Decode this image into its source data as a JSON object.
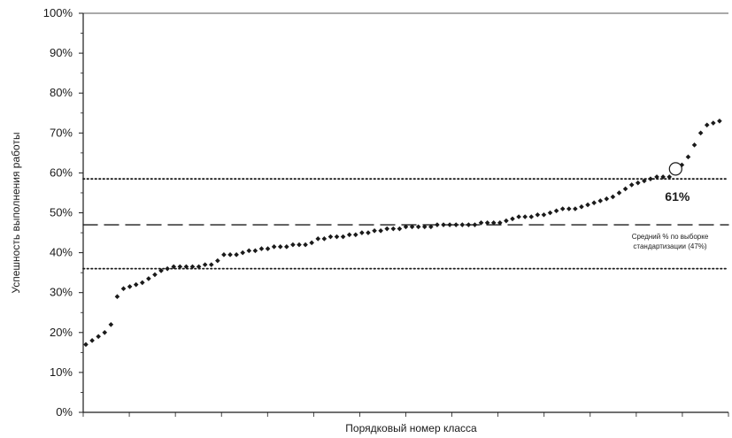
{
  "chart_data": {
    "type": "scatter",
    "title": "",
    "xlabel": "Порядковый номер класса",
    "ylabel": "Успешность выполнения работы",
    "ylim": [
      0,
      100
    ],
    "xlim": [
      0,
      102
    ],
    "yticks": [
      "0%",
      "10%",
      "20%",
      "30%",
      "40%",
      "50%",
      "60%",
      "70%",
      "80%",
      "90%",
      "100%"
    ],
    "grid": false,
    "reference_lines": [
      {
        "y": 58.5,
        "style": "dotted"
      },
      {
        "y": 47,
        "style": "dashed"
      },
      {
        "y": 36,
        "style": "dotted"
      }
    ],
    "highlight": {
      "x": 94,
      "y": 61,
      "label": "61%"
    },
    "annotation": {
      "line1": "Средний % по выборке",
      "line2": "стандартизации (47%)"
    },
    "series": [
      {
        "values": [
          {
            "x": 0,
            "y": 17
          },
          {
            "x": 1,
            "y": 18
          },
          {
            "x": 2,
            "y": 19
          },
          {
            "x": 3,
            "y": 20
          },
          {
            "x": 4,
            "y": 22
          },
          {
            "x": 5,
            "y": 29
          },
          {
            "x": 6,
            "y": 31
          },
          {
            "x": 7,
            "y": 31.5
          },
          {
            "x": 8,
            "y": 32
          },
          {
            "x": 9,
            "y": 32.5
          },
          {
            "x": 10,
            "y": 33.5
          },
          {
            "x": 11,
            "y": 34.5
          },
          {
            "x": 12,
            "y": 35.5
          },
          {
            "x": 13,
            "y": 36
          },
          {
            "x": 14,
            "y": 36.5
          },
          {
            "x": 15,
            "y": 36.5
          },
          {
            "x": 16,
            "y": 36.5
          },
          {
            "x": 17,
            "y": 36.5
          },
          {
            "x": 18,
            "y": 36.5
          },
          {
            "x": 19,
            "y": 37
          },
          {
            "x": 20,
            "y": 37
          },
          {
            "x": 21,
            "y": 38
          },
          {
            "x": 22,
            "y": 39.5
          },
          {
            "x": 23,
            "y": 39.5
          },
          {
            "x": 24,
            "y": 39.5
          },
          {
            "x": 25,
            "y": 40
          },
          {
            "x": 26,
            "y": 40.5
          },
          {
            "x": 27,
            "y": 40.5
          },
          {
            "x": 28,
            "y": 41
          },
          {
            "x": 29,
            "y": 41
          },
          {
            "x": 30,
            "y": 41.5
          },
          {
            "x": 31,
            "y": 41.5
          },
          {
            "x": 32,
            "y": 41.5
          },
          {
            "x": 33,
            "y": 42
          },
          {
            "x": 34,
            "y": 42
          },
          {
            "x": 35,
            "y": 42
          },
          {
            "x": 36,
            "y": 42.5
          },
          {
            "x": 37,
            "y": 43.5
          },
          {
            "x": 38,
            "y": 43.5
          },
          {
            "x": 39,
            "y": 44
          },
          {
            "x": 40,
            "y": 44
          },
          {
            "x": 41,
            "y": 44
          },
          {
            "x": 42,
            "y": 44.5
          },
          {
            "x": 43,
            "y": 44.5
          },
          {
            "x": 44,
            "y": 45
          },
          {
            "x": 45,
            "y": 45
          },
          {
            "x": 46,
            "y": 45.5
          },
          {
            "x": 47,
            "y": 45.5
          },
          {
            "x": 48,
            "y": 46
          },
          {
            "x": 49,
            "y": 46
          },
          {
            "x": 50,
            "y": 46
          },
          {
            "x": 51,
            "y": 46.5
          },
          {
            "x": 52,
            "y": 46.5
          },
          {
            "x": 53,
            "y": 46.5
          },
          {
            "x": 54,
            "y": 46.5
          },
          {
            "x": 55,
            "y": 46.5
          },
          {
            "x": 56,
            "y": 47
          },
          {
            "x": 57,
            "y": 47
          },
          {
            "x": 58,
            "y": 47
          },
          {
            "x": 59,
            "y": 47
          },
          {
            "x": 60,
            "y": 47
          },
          {
            "x": 61,
            "y": 47
          },
          {
            "x": 62,
            "y": 47
          },
          {
            "x": 63,
            "y": 47.5
          },
          {
            "x": 64,
            "y": 47.5
          },
          {
            "x": 65,
            "y": 47.5
          },
          {
            "x": 66,
            "y": 47.5
          },
          {
            "x": 67,
            "y": 48
          },
          {
            "x": 68,
            "y": 48.5
          },
          {
            "x": 69,
            "y": 49
          },
          {
            "x": 70,
            "y": 49
          },
          {
            "x": 71,
            "y": 49
          },
          {
            "x": 72,
            "y": 49.5
          },
          {
            "x": 73,
            "y": 49.5
          },
          {
            "x": 74,
            "y": 50
          },
          {
            "x": 75,
            "y": 50.5
          },
          {
            "x": 76,
            "y": 51
          },
          {
            "x": 77,
            "y": 51
          },
          {
            "x": 78,
            "y": 51
          },
          {
            "x": 79,
            "y": 51.5
          },
          {
            "x": 80,
            "y": 52
          },
          {
            "x": 81,
            "y": 52.5
          },
          {
            "x": 82,
            "y": 53
          },
          {
            "x": 83,
            "y": 53.5
          },
          {
            "x": 84,
            "y": 54
          },
          {
            "x": 85,
            "y": 55
          },
          {
            "x": 86,
            "y": 56
          },
          {
            "x": 87,
            "y": 57
          },
          {
            "x": 88,
            "y": 57.5
          },
          {
            "x": 89,
            "y": 58
          },
          {
            "x": 90,
            "y": 58.5
          },
          {
            "x": 91,
            "y": 59
          },
          {
            "x": 92,
            "y": 59
          },
          {
            "x": 93,
            "y": 59
          },
          {
            "x": 95,
            "y": 62
          },
          {
            "x": 96,
            "y": 64
          },
          {
            "x": 97,
            "y": 67
          },
          {
            "x": 98,
            "y": 70
          },
          {
            "x": 99,
            "y": 72
          },
          {
            "x": 100,
            "y": 72.5
          },
          {
            "x": 101,
            "y": 73
          }
        ]
      }
    ]
  }
}
